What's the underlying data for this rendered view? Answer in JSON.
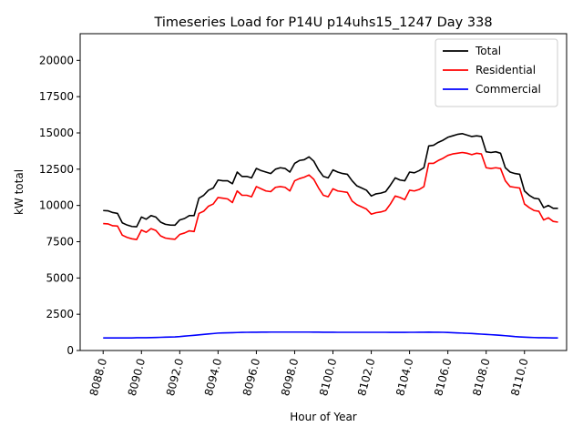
{
  "chart_data": {
    "type": "line",
    "title": "Timeseries Load for P14U p14uhs15_1247  Day 338",
    "xlabel": "Hour of Year",
    "ylabel": "kW total",
    "xlim": [
      8086.8,
      8112.2
    ],
    "ylim": [
      0,
      21840
    ],
    "xticks": [
      8088,
      8090,
      8092,
      8094,
      8096,
      8098,
      8100,
      8102,
      8104,
      8106,
      8108,
      8110
    ],
    "xtick_labels": [
      "8088.0",
      "8090.0",
      "8092.0",
      "8094.0",
      "8096.0",
      "8098.0",
      "8100.0",
      "8102.0",
      "8104.0",
      "8106.0",
      "8108.0",
      "8110.0"
    ],
    "yticks": [
      0,
      2500,
      5000,
      7500,
      10000,
      12500,
      15000,
      17500,
      20000
    ],
    "ytick_labels": [
      "0",
      "2500",
      "5000",
      "7500",
      "10000",
      "12500",
      "15000",
      "17500",
      "20000"
    ],
    "legend_position": "top-right",
    "x_start": 8088,
    "x_step": 0.25,
    "series": [
      {
        "name": "Total",
        "color": "#000000",
        "values": [
          9650,
          9630,
          9510,
          9450,
          8800,
          8650,
          8550,
          8530,
          9200,
          9050,
          9300,
          9200,
          8850,
          8700,
          8650,
          8640,
          9000,
          9100,
          9300,
          9300,
          10500,
          10700,
          11050,
          11200,
          11750,
          11700,
          11700,
          11500,
          12300,
          12000,
          12000,
          11900,
          12550,
          12400,
          12300,
          12200,
          12500,
          12600,
          12550,
          12300,
          12900,
          13100,
          13150,
          13350,
          13050,
          12450,
          12000,
          11900,
          12450,
          12300,
          12200,
          12150,
          11700,
          11350,
          11200,
          11050,
          10650,
          10800,
          10850,
          10950,
          11400,
          11900,
          11750,
          11700,
          12300,
          12250,
          12400,
          12600,
          14100,
          14150,
          14350,
          14500,
          14700,
          14800,
          14900,
          14950,
          14850,
          14750,
          14800,
          14750,
          13700,
          13650,
          13700,
          13600,
          12600,
          12300,
          12200,
          12150,
          11000,
          10700,
          10500,
          10450,
          9850,
          10000,
          9800,
          9800
        ]
      },
      {
        "name": "Residential",
        "color": "#ff0000",
        "values": [
          8750,
          8730,
          8600,
          8580,
          7950,
          7800,
          7700,
          7650,
          8300,
          8150,
          8400,
          8280,
          7900,
          7750,
          7700,
          7670,
          8000,
          8100,
          8250,
          8200,
          9450,
          9600,
          9950,
          10100,
          10550,
          10500,
          10450,
          10200,
          11000,
          10700,
          10700,
          10600,
          11300,
          11150,
          11000,
          10950,
          11250,
          11300,
          11250,
          11000,
          11700,
          11850,
          11950,
          12100,
          11800,
          11200,
          10700,
          10600,
          11150,
          11000,
          10950,
          10900,
          10300,
          10050,
          9900,
          9750,
          9400,
          9500,
          9550,
          9650,
          10100,
          10650,
          10550,
          10400,
          11050,
          11000,
          11100,
          11300,
          12900,
          12900,
          13100,
          13250,
          13450,
          13550,
          13600,
          13650,
          13600,
          13500,
          13600,
          13550,
          12600,
          12550,
          12600,
          12550,
          11700,
          11300,
          11250,
          11200,
          10100,
          9850,
          9650,
          9600,
          9000,
          9150,
          8900,
          8850
        ]
      },
      {
        "name": "Commercial",
        "color": "#0000ff",
        "values": [
          870,
          870,
          870,
          870,
          870,
          870,
          870,
          880,
          880,
          880,
          890,
          900,
          910,
          920,
          930,
          940,
          960,
          990,
          1020,
          1050,
          1080,
          1110,
          1140,
          1170,
          1200,
          1210,
          1220,
          1230,
          1240,
          1250,
          1255,
          1260,
          1260,
          1265,
          1265,
          1270,
          1270,
          1270,
          1270,
          1270,
          1270,
          1270,
          1270,
          1270,
          1265,
          1265,
          1260,
          1260,
          1260,
          1255,
          1255,
          1255,
          1255,
          1255,
          1255,
          1255,
          1255,
          1255,
          1255,
          1255,
          1250,
          1250,
          1250,
          1250,
          1255,
          1255,
          1260,
          1260,
          1265,
          1260,
          1260,
          1255,
          1245,
          1230,
          1215,
          1200,
          1185,
          1170,
          1150,
          1130,
          1110,
          1090,
          1070,
          1050,
          1020,
          990,
          960,
          940,
          920,
          905,
          895,
          885,
          880,
          875,
          870,
          870
        ]
      }
    ]
  }
}
